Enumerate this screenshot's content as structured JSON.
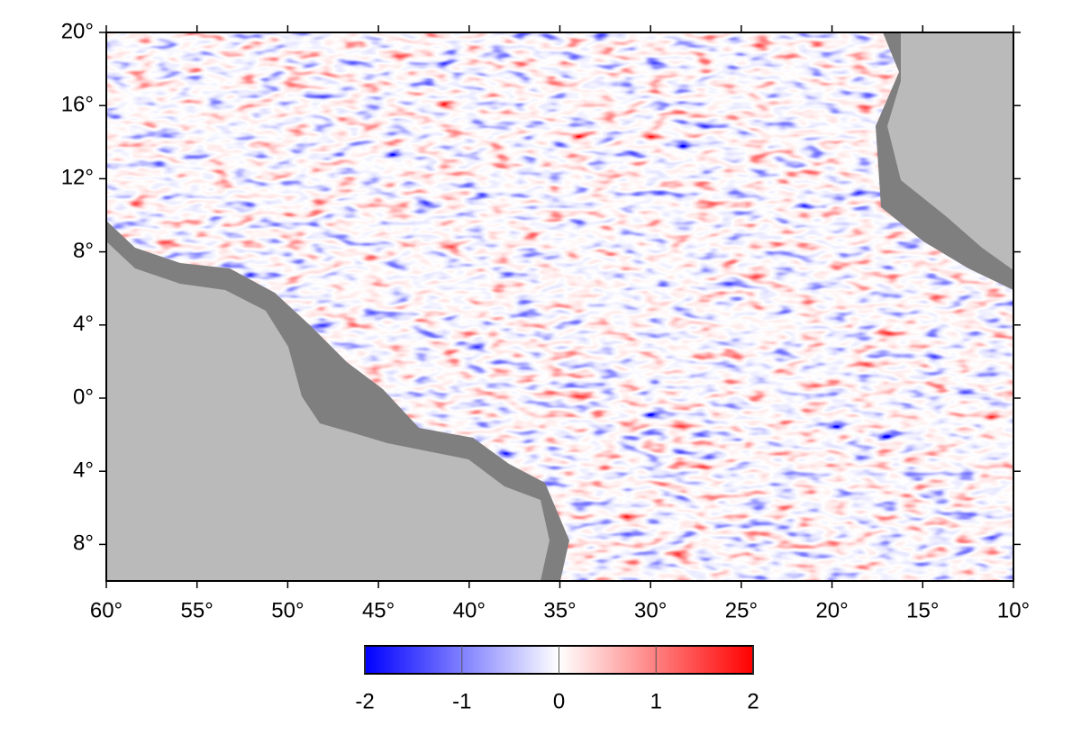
{
  "map": {
    "xlim": [
      -60,
      -10
    ],
    "ylim": [
      -10,
      20
    ],
    "xticks": [
      {
        "value": -60,
        "label": "60°"
      },
      {
        "value": -55,
        "label": "55°"
      },
      {
        "value": -50,
        "label": "50°"
      },
      {
        "value": -45,
        "label": "45°"
      },
      {
        "value": -40,
        "label": "40°"
      },
      {
        "value": -35,
        "label": "35°"
      },
      {
        "value": -30,
        "label": "30°"
      },
      {
        "value": -25,
        "label": "25°"
      },
      {
        "value": -20,
        "label": "20°"
      },
      {
        "value": -15,
        "label": "15°"
      },
      {
        "value": -10,
        "label": "10°"
      }
    ],
    "yticks": [
      {
        "value": 20,
        "label": "20°"
      },
      {
        "value": 16,
        "label": "16°"
      },
      {
        "value": 12,
        "label": "12°"
      },
      {
        "value": 8,
        "label": "8°"
      },
      {
        "value": 4,
        "label": "4°"
      },
      {
        "value": 0,
        "label": "0°"
      },
      {
        "value": -4,
        "label": "4°"
      },
      {
        "value": -8,
        "label": "8°"
      }
    ],
    "colorbar": {
      "clim": [
        -2,
        2
      ],
      "ticks": [
        -2,
        -1,
        0,
        1,
        2
      ],
      "colors": [
        "#0000ff",
        "#ffffff",
        "#ff0000"
      ]
    }
  }
}
